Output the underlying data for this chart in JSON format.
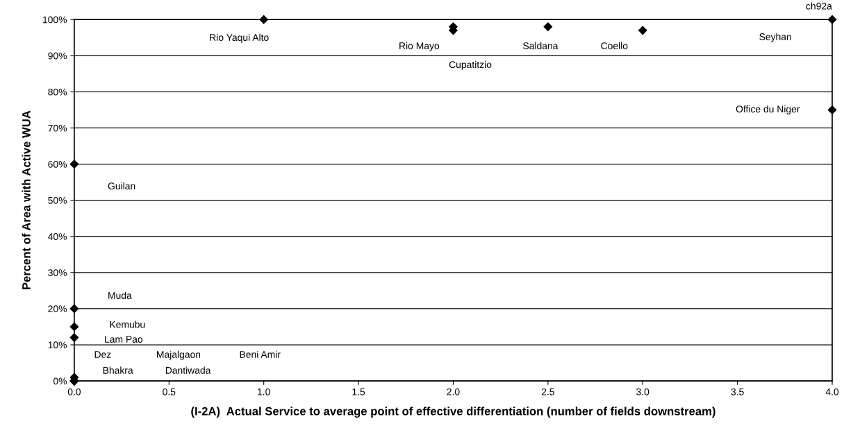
{
  "chart_data": {
    "type": "scatter",
    "xlabel": "(I-2A)  Actual Service to average point of effective differentiation (number of fields downstream)",
    "ylabel": "Percent of Area with Active WUA",
    "series": [
      {
        "color": "#000000",
        "x": [
          1.0,
          2.0,
          2.0,
          2.5,
          3.0,
          4.0,
          4.0,
          0.0,
          0.0,
          0.0,
          0.0,
          0.0,
          0.0,
          0.0,
          0.0,
          0.0
        ],
        "values": [
          100,
          98,
          97,
          98,
          97,
          100,
          75,
          60,
          20,
          15,
          12,
          1,
          0,
          0,
          0,
          0
        ]
      }
    ],
    "marker": "diamond",
    "xlim": [
      0,
      4
    ],
    "ylim": [
      0,
      100
    ],
    "xticks": [
      {
        "value": 0,
        "label": "0.0"
      },
      {
        "value": 0.5,
        "label": "0.5"
      },
      {
        "value": 1,
        "label": "1.0"
      },
      {
        "value": 1.5,
        "label": "1.5"
      },
      {
        "value": 2,
        "label": "2.0"
      },
      {
        "value": 2.5,
        "label": "2.5"
      },
      {
        "value": 3,
        "label": "3.0"
      },
      {
        "value": 3.5,
        "label": "3.5"
      },
      {
        "value": 4,
        "label": "4.0"
      }
    ],
    "yticks": [
      {
        "value": 0,
        "label": "0%"
      },
      {
        "value": 10,
        "label": "10%"
      },
      {
        "value": 20,
        "label": "20%"
      },
      {
        "value": 30,
        "label": "30%"
      },
      {
        "value": 40,
        "label": "40%"
      },
      {
        "value": 50,
        "label": "50%"
      },
      {
        "value": 60,
        "label": "60%"
      },
      {
        "value": 70,
        "label": "70%"
      },
      {
        "value": 80,
        "label": "80%"
      },
      {
        "value": 90,
        "label": "90%"
      },
      {
        "value": 100,
        "label": "100%"
      }
    ],
    "grid": "y",
    "annotations": [
      "Rio Yaqui Alto",
      "Rio Mayo",
      "Cupatitzio",
      "Saldana",
      "Coello",
      "Seyhan",
      "ch92a",
      "Office du Niger",
      "Guilan",
      "Muda",
      "Kemubu",
      "Lam Pao",
      "Dez",
      "Majalgaon",
      "Beni Amir",
      "Bhakra",
      "Dantiwada"
    ]
  }
}
